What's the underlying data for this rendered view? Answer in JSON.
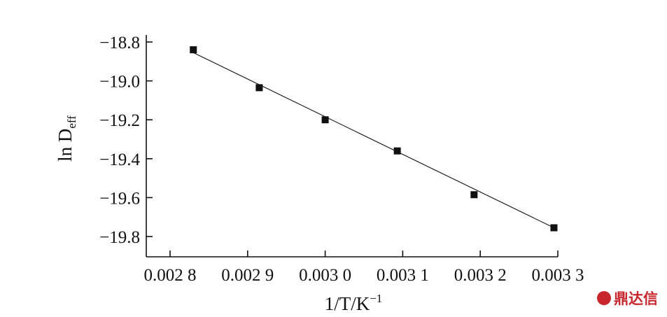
{
  "chart_data": {
    "type": "scatter",
    "xlabel": "1/T/K",
    "xlabel_superscript": "−1",
    "ylabel": "ln D",
    "ylabel_subscript": "eff",
    "xlim": [
      0.00278,
      0.00333
    ],
    "ylim": [
      -19.9,
      -18.75
    ],
    "x_ticks": [
      0.0028,
      0.0029,
      0.003,
      0.0031,
      0.0032,
      0.0033
    ],
    "x_tick_labels": [
      "0.002 8",
      "0.002 9",
      "0.003 0",
      "0.003 1",
      "0.003 2",
      "0.003 3"
    ],
    "y_ticks": [
      -18.8,
      -19.0,
      -19.2,
      -19.4,
      -19.6,
      -19.8
    ],
    "y_tick_labels": [
      "−18.8",
      "−19.0",
      "−19.2",
      "−19.4",
      "−19.6",
      "−19.8"
    ],
    "series": [
      {
        "marker": "square",
        "x": [
          0.00283,
          0.002915,
          0.003,
          0.003093,
          0.003192,
          0.003295
        ],
        "y": [
          -18.84,
          -19.035,
          -19.2,
          -19.36,
          -19.585,
          -19.755
        ]
      }
    ],
    "fit_line": {
      "x": [
        0.00283,
        0.003295
      ],
      "y": [
        -18.855,
        -19.755
      ]
    },
    "grid": false,
    "legend": "none"
  },
  "watermark": {
    "text": "鼎达信",
    "color": "#c8262c"
  }
}
